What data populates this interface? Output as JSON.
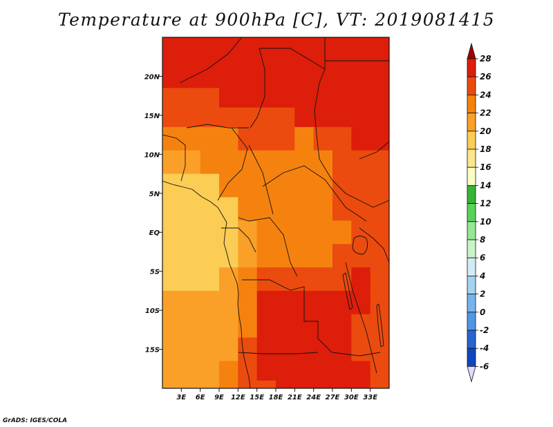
{
  "title": "Temperature at 900hPa [C], VT: 2019081415",
  "credit": "GrADS: IGES/COLA",
  "chart_data": {
    "type": "heatmap",
    "title": "Temperature at 900hPa [C], VT: 2019081415",
    "variable": "Temperature",
    "level": "900hPa",
    "units": "C",
    "valid_time": "2019081415",
    "x_axis": {
      "range": [
        0,
        36
      ],
      "ticks": [
        3,
        6,
        9,
        12,
        15,
        18,
        21,
        24,
        27,
        30,
        33
      ],
      "tick_labels": [
        "3E",
        "6E",
        "9E",
        "12E",
        "15E",
        "18E",
        "21E",
        "24E",
        "27E",
        "30E",
        "33E"
      ]
    },
    "y_axis": {
      "range": [
        -20,
        25
      ],
      "ticks": [
        20,
        15,
        10,
        5,
        0,
        -5,
        -10,
        -15
      ],
      "tick_labels": [
        "20N",
        "15N",
        "10N",
        "5N",
        "EQ",
        "5S",
        "10S",
        "15S"
      ]
    },
    "colorbar": {
      "levels": [
        28,
        26,
        24,
        22,
        20,
        18,
        16,
        14,
        12,
        10,
        8,
        6,
        4,
        2,
        0,
        -2,
        -4,
        -6
      ],
      "colors": [
        "#a00000",
        "#dc1e0a",
        "#eb4b0f",
        "#f5820f",
        "#faa028",
        "#fbcd55",
        "#fbe68c",
        "#fdfdc8",
        "#37b437",
        "#5ad25a",
        "#96e696",
        "#c8f5c8",
        "#d2ebf5",
        "#a5d2ef",
        "#78b4eb",
        "#5096e6",
        "#2864d2",
        "#0f46be",
        "#0a2896",
        "#000a64",
        "#ddddff"
      ],
      "extend": "both"
    },
    "field_rows": [
      {
        "lat": 24.5,
        "values": [
          26,
          26,
          26,
          26,
          26,
          26,
          26,
          26,
          26,
          26,
          26,
          26
        ]
      },
      {
        "lat": 20.0,
        "values": [
          26,
          26,
          26,
          26,
          26,
          26,
          26,
          26,
          26,
          26,
          26,
          26
        ]
      },
      {
        "lat": 17.0,
        "values": [
          25,
          25,
          25,
          26,
          26,
          26,
          26,
          26,
          26,
          26,
          26,
          26
        ]
      },
      {
        "lat": 15.0,
        "values": [
          24,
          24,
          24,
          25,
          25,
          25,
          25,
          26,
          26,
          26,
          26,
          26
        ]
      },
      {
        "lat": 12.0,
        "values": [
          22,
          22,
          23,
          23,
          24,
          24,
          24,
          23,
          24,
          25,
          26,
          26
        ]
      },
      {
        "lat": 9.0,
        "values": [
          21,
          21,
          22,
          22,
          22,
          23,
          23,
          23,
          23,
          24,
          25,
          25
        ]
      },
      {
        "lat": 6.0,
        "values": [
          19,
          19,
          19,
          22,
          22,
          23,
          23,
          23,
          23,
          24,
          24,
          24
        ]
      },
      {
        "lat": 3.0,
        "values": [
          19,
          19,
          19,
          19,
          22,
          22,
          23,
          23,
          23,
          24,
          24,
          25
        ]
      },
      {
        "lat": 0.0,
        "values": [
          19,
          19,
          19,
          19,
          21,
          22,
          22,
          22,
          22,
          23,
          24,
          25
        ]
      },
      {
        "lat": -3.0,
        "values": [
          19,
          19,
          19,
          19,
          21,
          22,
          22,
          22,
          23,
          25,
          25,
          25
        ]
      },
      {
        "lat": -6.0,
        "values": [
          19,
          19,
          19,
          20,
          22,
          24,
          25,
          25,
          25,
          25,
          26,
          25
        ]
      },
      {
        "lat": -9.0,
        "values": [
          20,
          20,
          20,
          20,
          22,
          26,
          26,
          26,
          26,
          26,
          26,
          25
        ]
      },
      {
        "lat": -12.0,
        "values": [
          20,
          20,
          20,
          20,
          23,
          26,
          26,
          26,
          26,
          26,
          25,
          24
        ]
      },
      {
        "lat": -15.0,
        "values": [
          20,
          20,
          20,
          21,
          24,
          26,
          26,
          26,
          26,
          26,
          25,
          24
        ]
      },
      {
        "lat": -18.0,
        "values": [
          20,
          20,
          20,
          22,
          24,
          26,
          26,
          26,
          26,
          26,
          26,
          25
        ]
      },
      {
        "lat": -20.0,
        "values": [
          20,
          20,
          20,
          22,
          24,
          25,
          26,
          26,
          26,
          26,
          26,
          25
        ]
      }
    ],
    "row_centers_lon": [
      1.5,
      4.5,
      7.5,
      10.5,
      13.5,
      16.5,
      19.5,
      22.5,
      25.5,
      28.5,
      31.5,
      34.5
    ]
  }
}
